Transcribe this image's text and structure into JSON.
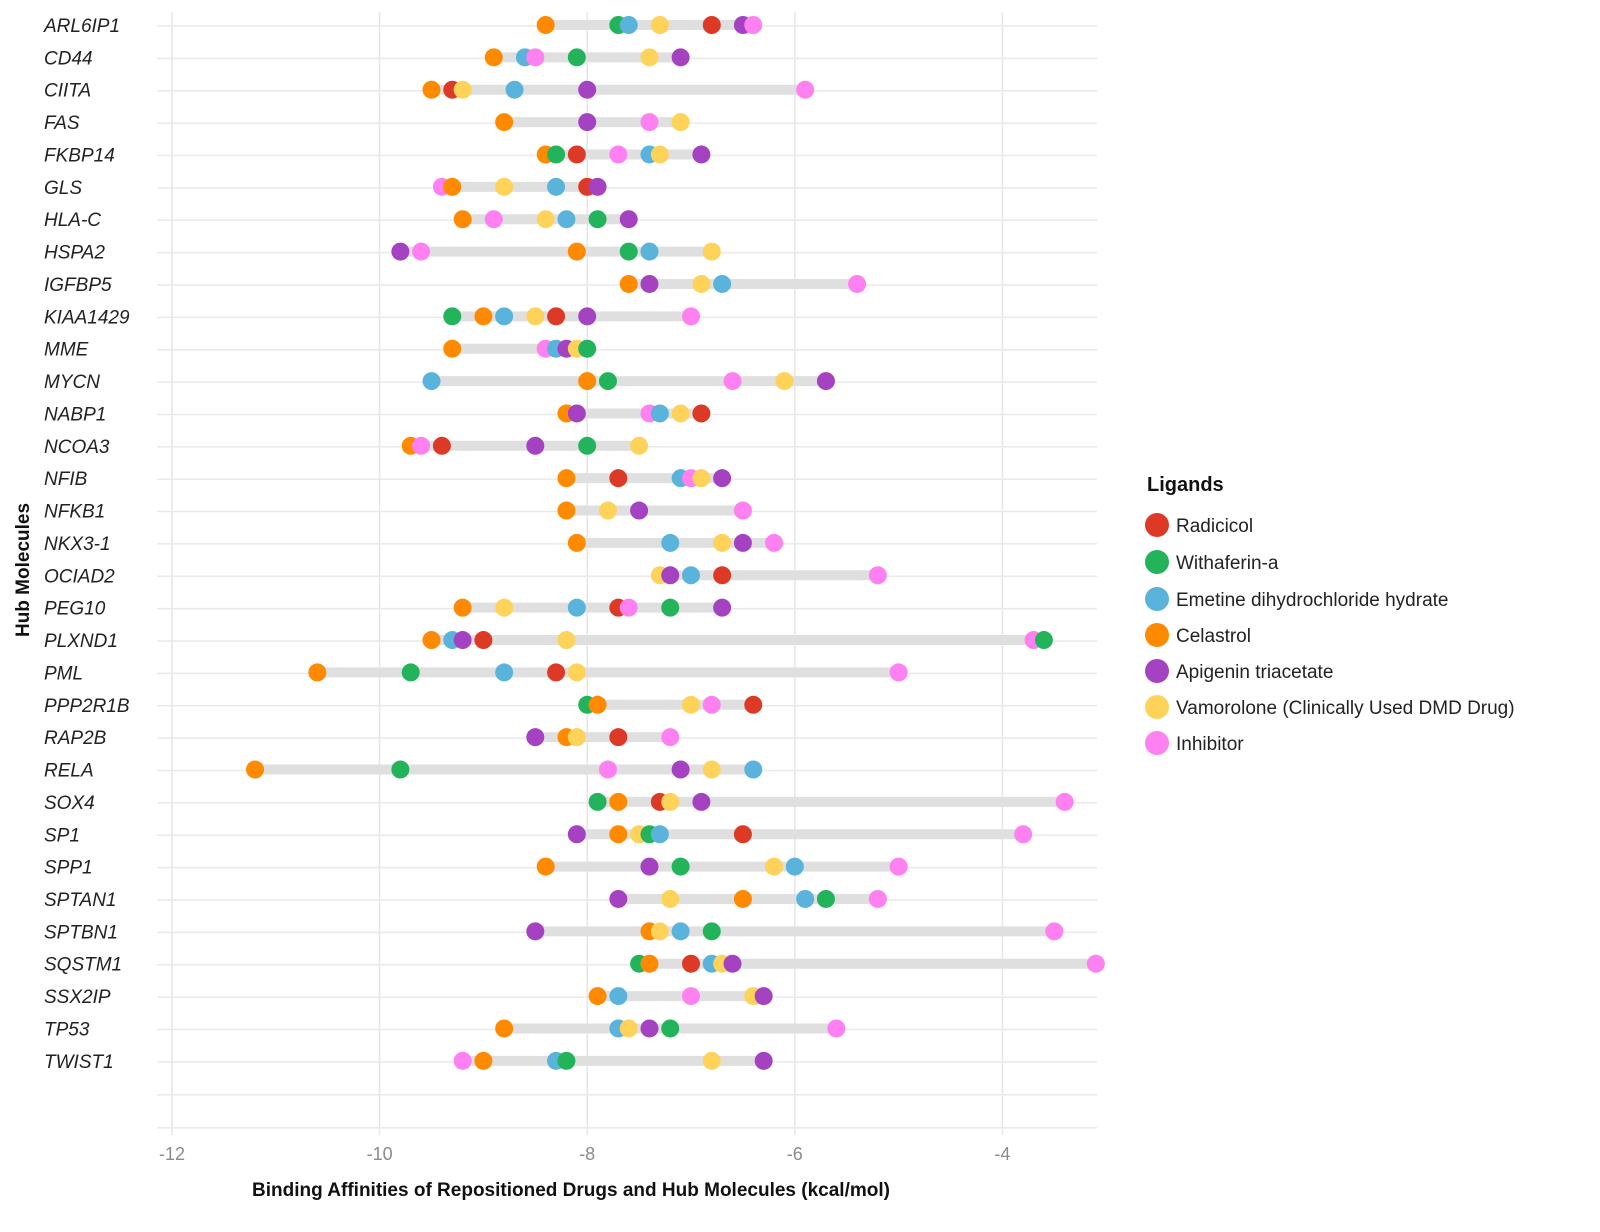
{
  "chart_data": {
    "type": "dot-range",
    "xlabel": "Binding Affinities of Repositioned Drugs and Hub Molecules (kcal/mol)",
    "ylabel": "Hub Molecules",
    "xlim": [
      -12.1,
      -2.9
    ],
    "xticks": [
      -12,
      -10,
      -8,
      -6,
      -4
    ],
    "grid": true,
    "legend": {
      "title": "Ligands",
      "placement": "right"
    },
    "series": [
      {
        "name": "Radicicol",
        "color": "#dc3a26"
      },
      {
        "name": "Withaferin-a",
        "color": "#22b35b"
      },
      {
        "name": "Emetine dihydrochloride hydrate",
        "color": "#5ab3da"
      },
      {
        "name": "Celastrol",
        "color": "#ff8a00"
      },
      {
        "name": "Apigenin triacetate",
        "color": "#a442c2"
      },
      {
        "name": "Vamorolone (Clinically Used DMD Drug)",
        "color": "#ffd25a"
      },
      {
        "name": "Inhibitor",
        "color": "#ff80f0"
      }
    ],
    "rows": [
      {
        "molecule": "ARL6IP1",
        "values": [
          -6.8,
          -7.7,
          -7.6,
          -8.4,
          -6.5,
          -7.3,
          -6.4
        ]
      },
      {
        "molecule": "CD44",
        "values": [
          null,
          -8.1,
          -8.6,
          -8.9,
          -7.1,
          -7.4,
          -8.5
        ]
      },
      {
        "molecule": "CIITA",
        "values": [
          -9.3,
          null,
          -8.7,
          -9.5,
          -8.0,
          -9.2,
          -5.9
        ]
      },
      {
        "molecule": "FAS",
        "values": [
          null,
          null,
          null,
          -8.8,
          -8.0,
          -7.1,
          -7.4
        ]
      },
      {
        "molecule": "FKBP14",
        "values": [
          -8.1,
          -8.3,
          -7.4,
          -8.4,
          -6.9,
          -7.3,
          -7.7
        ]
      },
      {
        "molecule": "GLS",
        "values": [
          -8.0,
          null,
          -8.3,
          -9.3,
          -7.9,
          -8.8,
          -9.4
        ]
      },
      {
        "molecule": "HLA-C",
        "values": [
          null,
          -7.9,
          -8.2,
          -9.2,
          -7.6,
          -8.4,
          -8.9
        ]
      },
      {
        "molecule": "HSPA2",
        "values": [
          null,
          -7.6,
          -7.4,
          -8.1,
          -9.8,
          -6.8,
          -9.6
        ]
      },
      {
        "molecule": "IGFBP5",
        "values": [
          null,
          null,
          -6.7,
          -7.6,
          -7.4,
          -6.9,
          -5.4
        ]
      },
      {
        "molecule": "KIAA1429",
        "values": [
          -8.3,
          -9.3,
          -8.8,
          -9.0,
          -8.0,
          -8.5,
          -7.0
        ]
      },
      {
        "molecule": "MME",
        "values": [
          null,
          -8.0,
          -8.3,
          -9.3,
          -8.2,
          -8.1,
          -8.4
        ]
      },
      {
        "molecule": "MYCN",
        "values": [
          null,
          -7.8,
          -9.5,
          -8.0,
          -5.7,
          -6.1,
          -6.6
        ]
      },
      {
        "molecule": "NABP1",
        "values": [
          -6.9,
          null,
          -7.3,
          -8.2,
          -8.1,
          -7.1,
          -7.4
        ]
      },
      {
        "molecule": "NCOA3",
        "values": [
          -9.4,
          -8.0,
          null,
          -9.7,
          -8.5,
          -7.5,
          -9.6
        ]
      },
      {
        "molecule": "NFIB",
        "values": [
          -7.7,
          null,
          -7.1,
          -8.2,
          -6.7,
          -6.9,
          -7.0
        ]
      },
      {
        "molecule": "NFKB1",
        "values": [
          null,
          null,
          null,
          -8.2,
          -7.5,
          -7.8,
          -6.5
        ]
      },
      {
        "molecule": "NKX3-1",
        "values": [
          null,
          null,
          -7.2,
          -8.1,
          -6.5,
          -6.7,
          -6.2
        ]
      },
      {
        "molecule": "OCIAD2",
        "values": [
          -6.7,
          null,
          -7.0,
          null,
          -7.2,
          -7.3,
          -5.2
        ]
      },
      {
        "molecule": "PEG10",
        "values": [
          -7.7,
          -7.2,
          -8.1,
          -9.2,
          -6.7,
          -8.8,
          -7.6
        ]
      },
      {
        "molecule": "PLXND1",
        "values": [
          -9.0,
          -3.6,
          -9.3,
          -9.5,
          -9.2,
          -8.2,
          -3.7
        ]
      },
      {
        "molecule": "PML",
        "values": [
          -8.3,
          -9.7,
          -8.8,
          -10.6,
          null,
          -8.1,
          -5.0
        ]
      },
      {
        "molecule": "PPP2R1B",
        "values": [
          -6.4,
          -8.0,
          null,
          -7.9,
          null,
          -7.0,
          -6.8
        ]
      },
      {
        "molecule": "RAP2B",
        "values": [
          -7.7,
          null,
          null,
          -8.2,
          -8.5,
          -8.1,
          -7.2
        ]
      },
      {
        "molecule": "RELA",
        "values": [
          null,
          -9.8,
          -6.4,
          -11.2,
          -7.1,
          -6.8,
          -7.8
        ]
      },
      {
        "molecule": "SOX4",
        "values": [
          -7.3,
          -7.9,
          null,
          -7.7,
          -6.9,
          -7.2,
          -3.4
        ]
      },
      {
        "molecule": "SP1",
        "values": [
          -6.5,
          -7.4,
          -7.3,
          -7.7,
          -8.1,
          -7.5,
          -3.8
        ]
      },
      {
        "molecule": "SPP1",
        "values": [
          null,
          -7.1,
          -6.0,
          -8.4,
          -7.4,
          -6.2,
          -5.0
        ]
      },
      {
        "molecule": "SPTAN1",
        "values": [
          null,
          -5.7,
          -5.9,
          -6.5,
          -7.7,
          -7.2,
          -5.2
        ]
      },
      {
        "molecule": "SPTBN1",
        "values": [
          null,
          -6.8,
          -7.1,
          -7.4,
          -8.5,
          -7.3,
          -3.5
        ]
      },
      {
        "molecule": "SQSTM1",
        "values": [
          -7.0,
          -7.5,
          -6.8,
          -7.4,
          -6.6,
          -6.7,
          -3.1
        ]
      },
      {
        "molecule": "SSX2IP",
        "values": [
          null,
          null,
          -7.7,
          -7.9,
          -6.3,
          -6.4,
          -7.0
        ]
      },
      {
        "molecule": "TP53",
        "values": [
          null,
          -7.2,
          -7.7,
          -8.8,
          -7.4,
          -7.6,
          -5.6
        ]
      },
      {
        "molecule": "TWIST1",
        "values": [
          null,
          -8.2,
          -8.3,
          -9.0,
          -6.3,
          -6.8,
          -9.2
        ]
      }
    ]
  }
}
